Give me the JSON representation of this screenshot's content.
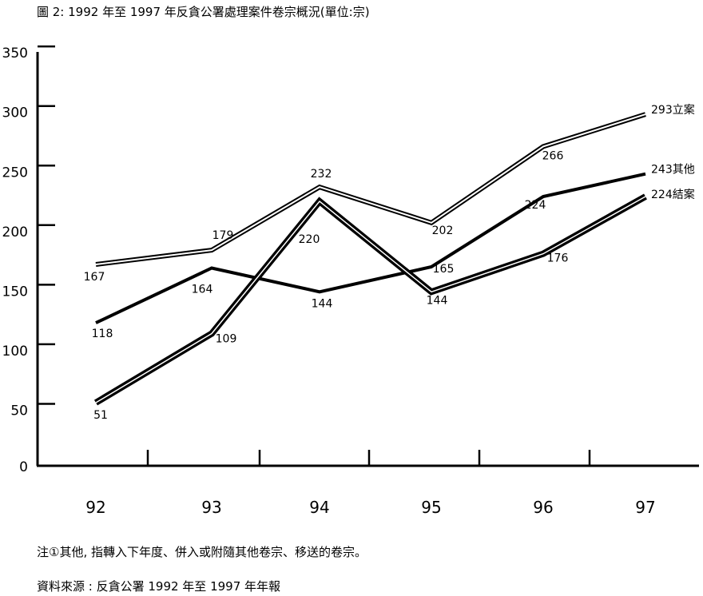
{
  "title": "圖 2: 1992 年至 1997 年反貪公署處理案件卷宗概況(單位:宗)",
  "note": "注①其他, 指轉入下年度、併入或附隨其他卷宗、移送的卷宗。",
  "source": "資料來源 : 反貪公署 1992 年至 1997 年年報",
  "chart_data": {
    "type": "line",
    "title": "圖 2: 1992 年至 1997 年反貪公署處理案件卷宗概況(單位:宗)",
    "categories": [
      "92",
      "93",
      "94",
      "95",
      "96",
      "97"
    ],
    "ylim": [
      0,
      350
    ],
    "yticks": [
      0,
      50,
      100,
      150,
      200,
      250,
      300,
      350
    ],
    "grid": false,
    "series": [
      {
        "name": "立案",
        "style": "double",
        "values": [
          167,
          179,
          232,
          202,
          266,
          293
        ]
      },
      {
        "name": "其他",
        "style": "thick",
        "values": [
          118,
          164,
          144,
          165,
          224,
          243
        ]
      },
      {
        "name": "結案",
        "style": "double-thick",
        "values": [
          51,
          109,
          220,
          144,
          176,
          224
        ]
      }
    ]
  }
}
